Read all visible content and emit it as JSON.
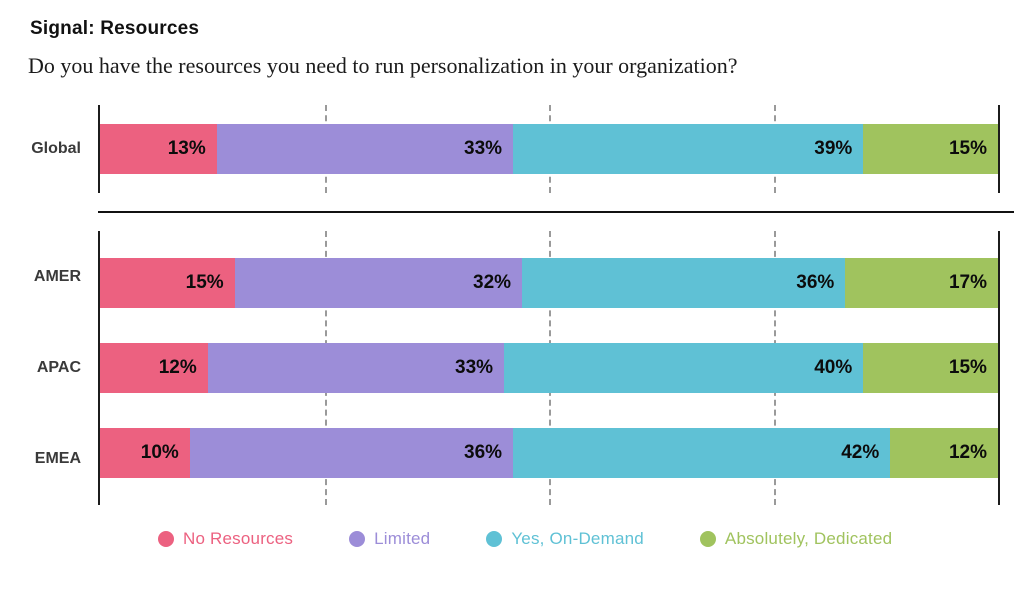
{
  "header": {
    "title": "Signal: Resources",
    "question": "Do you have the resources you need to run personalization in your organization?"
  },
  "chart_data": {
    "type": "bar",
    "orientation": "horizontal",
    "stacked": true,
    "unit": "%",
    "xlim": [
      0,
      100
    ],
    "gridlines_percent": [
      25,
      50,
      75
    ],
    "grid_style": "dashed",
    "title": "Signal: Resources",
    "subtitle": "Do you have the resources you need to run personalization in your organization?",
    "series_labels": [
      "No Resources",
      "Limited",
      "Yes, On-Demand",
      "Absolutely, Dedicated"
    ],
    "colors": [
      "#ec6180",
      "#9c8dd8",
      "#5fc1d5",
      "#a0c35e"
    ],
    "groups": [
      {
        "name": "global",
        "rows": [
          {
            "label": "Global",
            "values": [
              13,
              33,
              39,
              15
            ]
          }
        ]
      },
      {
        "name": "regions",
        "rows": [
          {
            "label": "AMER",
            "values": [
              15,
              32,
              36,
              17
            ]
          },
          {
            "label": "APAC",
            "values": [
              12,
              33,
              40,
              15
            ]
          },
          {
            "label": "EMEA",
            "values": [
              10,
              36,
              42,
              12
            ]
          }
        ]
      }
    ],
    "legend": [
      {
        "label": "No Resources",
        "color": "#ec6180"
      },
      {
        "label": "Limited",
        "color": "#9c8dd8"
      },
      {
        "label": "Yes, On-Demand",
        "color": "#5fc1d5"
      },
      {
        "label": "Absolutely, Dedicated",
        "color": "#a0c35e"
      }
    ],
    "legend_position": "bottom"
  }
}
